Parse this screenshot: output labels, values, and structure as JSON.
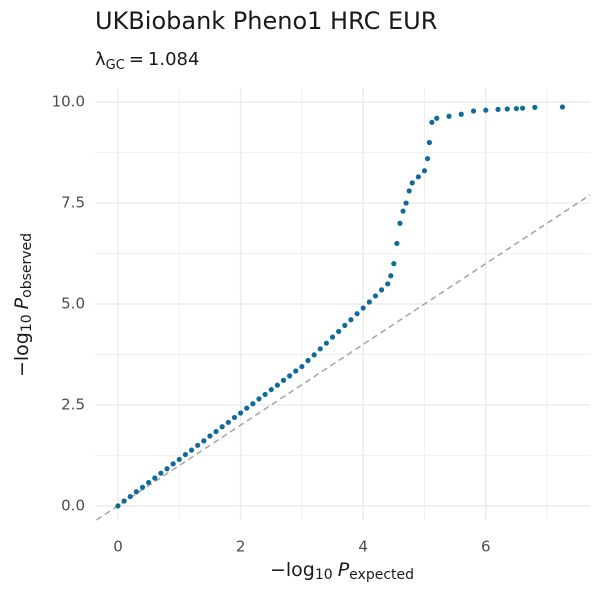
{
  "chart_data": {
    "type": "scatter",
    "title": "UKBiobank Pheno1 HRC EUR",
    "subtitle": {
      "symbol": "λ",
      "subscript": "GC",
      "operator": "=",
      "value": 1.084
    },
    "x_label": {
      "text": "−log",
      "base": "10",
      "variable": "P",
      "subscript": "expected"
    },
    "y_label": {
      "text": "−log",
      "base": "10",
      "variable": "P",
      "subscript": "observed"
    },
    "xlim": [
      -0.375,
      7.7
    ],
    "ylim": [
      -0.35,
      10.35
    ],
    "xticks": [
      0,
      2,
      4,
      6
    ],
    "yticks": [
      {
        "value": 0,
        "label": "0.0"
      },
      2.5,
      {
        "value": 5,
        "label": "5.0"
      },
      7.5,
      {
        "value": 10,
        "label": "10.0"
      }
    ],
    "grid": true,
    "minor_grid": true,
    "reference_line": true,
    "color": "#0f6b99",
    "x": [
      0,
      0.1,
      0.2,
      0.3,
      0.4,
      0.5,
      0.6,
      0.7,
      0.8,
      0.9,
      1.0,
      1.1,
      1.2,
      1.3,
      1.4,
      1.5,
      1.6,
      1.7,
      1.8,
      1.9,
      2.0,
      2.1,
      2.2,
      2.3,
      2.4,
      2.5,
      2.6,
      2.7,
      2.8,
      2.9,
      3.0,
      3.1,
      3.2,
      3.3,
      3.4,
      3.5,
      3.6,
      3.7,
      3.8,
      3.9,
      4.0,
      4.1,
      4.2,
      4.3,
      4.4,
      4.45,
      4.5,
      4.55,
      4.6,
      4.65,
      4.7,
      4.75,
      4.8,
      4.9,
      5.0,
      5.05,
      5.08,
      5.12,
      5.2,
      5.4,
      5.6,
      5.8,
      6.0,
      6.2,
      6.35,
      6.5,
      6.6,
      6.8,
      7.25
    ],
    "y": [
      0,
      0.12,
      0.23,
      0.35,
      0.46,
      0.58,
      0.69,
      0.81,
      0.92,
      1.04,
      1.15,
      1.27,
      1.38,
      1.5,
      1.61,
      1.73,
      1.84,
      1.96,
      2.07,
      2.19,
      2.3,
      2.42,
      2.53,
      2.65,
      2.76,
      2.88,
      2.99,
      3.11,
      3.22,
      3.34,
      3.45,
      3.6,
      3.74,
      3.89,
      4.03,
      4.18,
      4.32,
      4.47,
      4.61,
      4.76,
      4.9,
      5.05,
      5.2,
      5.35,
      5.5,
      5.7,
      6.0,
      6.5,
      7.0,
      7.3,
      7.5,
      7.8,
      8.0,
      8.15,
      8.3,
      8.6,
      9.0,
      9.5,
      9.6,
      9.65,
      9.7,
      9.78,
      9.8,
      9.82,
      9.83,
      9.84,
      9.85,
      9.87,
      9.88
    ]
  }
}
